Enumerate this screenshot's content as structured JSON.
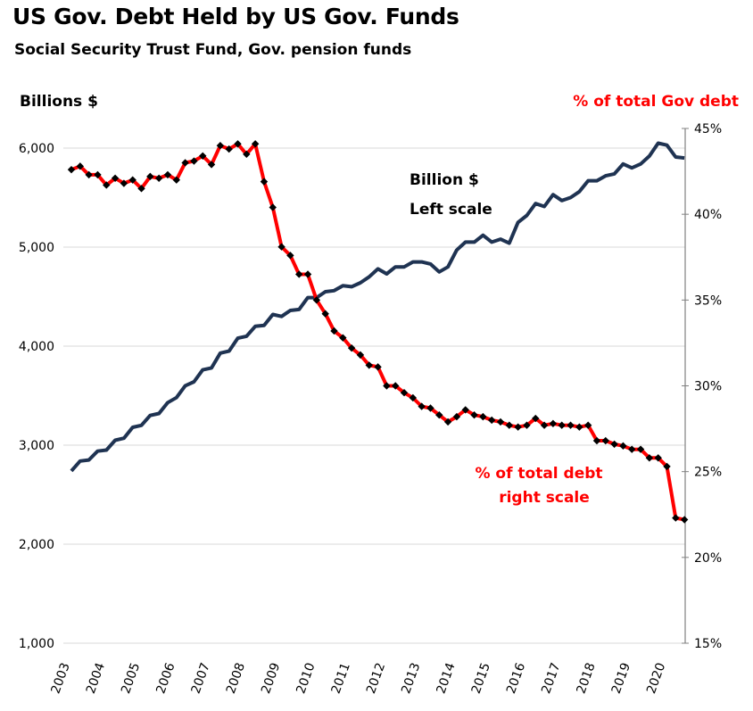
{
  "chart_data": {
    "type": "line",
    "title": "US Gov. Debt Held by US Gov.  Funds",
    "subtitle": "Social Security Trust Fund, Gov. pension funds",
    "ylabel_left": "Billions  $",
    "ylabel_right": "% of total Gov debt",
    "xlabel": "",
    "x_ticks": [
      "2003",
      "2004",
      "2005",
      "2006",
      "2007",
      "2008",
      "2009",
      "2010",
      "2011",
      "2012",
      "2013",
      "2014",
      "2015",
      "2016",
      "2017",
      "2018",
      "2019",
      "2020"
    ],
    "ylim_left": [
      1000,
      6000
    ],
    "yticks_left": [
      "1,000",
      "2,000",
      "3,000",
      "4,000",
      "5,000",
      "6,000"
    ],
    "ylim_right": [
      15,
      45
    ],
    "yticks_right": [
      "15%",
      "20%",
      "25%",
      "30%",
      "35%",
      "40%",
      "45%"
    ],
    "annotations": {
      "billion_line1": "Billion $",
      "billion_line2": "Left scale",
      "pct_line1": "% of total debt",
      "pct_line2": "right scale"
    },
    "colors": {
      "billions": "#1f3352",
      "percent": "#ff0000",
      "markers": "#000000"
    },
    "series": [
      {
        "name": "Billion $ (left scale)",
        "axis": "left",
        "x": [
          2003.0,
          2003.25,
          2003.5,
          2003.75,
          2004.0,
          2004.25,
          2004.5,
          2004.75,
          2005.0,
          2005.25,
          2005.5,
          2005.75,
          2006.0,
          2006.25,
          2006.5,
          2006.75,
          2007.0,
          2007.25,
          2007.5,
          2007.75,
          2008.0,
          2008.25,
          2008.5,
          2008.75,
          2009.0,
          2009.25,
          2009.5,
          2009.75,
          2010.0,
          2010.25,
          2010.5,
          2010.75,
          2011.0,
          2011.25,
          2011.5,
          2011.75,
          2012.0,
          2012.25,
          2012.5,
          2012.75,
          2013.0,
          2013.25,
          2013.5,
          2013.75,
          2014.0,
          2014.25,
          2014.5,
          2014.75,
          2015.0,
          2015.25,
          2015.5,
          2015.75,
          2016.0,
          2016.25,
          2016.5,
          2016.75,
          2017.0,
          2017.25,
          2017.5,
          2017.75,
          2018.0,
          2018.25,
          2018.5,
          2018.75,
          2019.0,
          2019.25,
          2019.5,
          2019.75,
          2020.0,
          2020.25,
          2020.5
        ],
        "values": [
          2740,
          2840,
          2850,
          2940,
          2950,
          3050,
          3070,
          3180,
          3200,
          3300,
          3320,
          3430,
          3480,
          3600,
          3640,
          3760,
          3780,
          3930,
          3950,
          4080,
          4100,
          4200,
          4210,
          4320,
          4300,
          4360,
          4370,
          4490,
          4490,
          4550,
          4560,
          4610,
          4600,
          4640,
          4700,
          4780,
          4730,
          4800,
          4800,
          4850,
          4850,
          4830,
          4750,
          4800,
          4970,
          5050,
          5050,
          5120,
          5050,
          5080,
          5040,
          5250,
          5320,
          5440,
          5410,
          5530,
          5470,
          5500,
          5560,
          5670,
          5670,
          5720,
          5740,
          5840,
          5800,
          5840,
          5920,
          6050,
          6030,
          5910,
          5900
        ]
      },
      {
        "name": "% of total debt (right scale)",
        "axis": "right",
        "x": [
          2003.0,
          2003.25,
          2003.5,
          2003.75,
          2004.0,
          2004.25,
          2004.5,
          2004.75,
          2005.0,
          2005.25,
          2005.5,
          2005.75,
          2006.0,
          2006.25,
          2006.5,
          2006.75,
          2007.0,
          2007.25,
          2007.5,
          2007.75,
          2008.0,
          2008.25,
          2008.5,
          2008.75,
          2009.0,
          2009.25,
          2009.5,
          2009.75,
          2010.0,
          2010.25,
          2010.5,
          2010.75,
          2011.0,
          2011.25,
          2011.5,
          2011.75,
          2012.0,
          2012.25,
          2012.5,
          2012.75,
          2013.0,
          2013.25,
          2013.5,
          2013.75,
          2014.0,
          2014.25,
          2014.5,
          2014.75,
          2015.0,
          2015.25,
          2015.5,
          2015.75,
          2016.0,
          2016.25,
          2016.5,
          2016.75,
          2017.0,
          2017.25,
          2017.5,
          2017.75,
          2018.0,
          2018.25,
          2018.5,
          2018.75,
          2019.0,
          2019.25,
          2019.5,
          2019.75,
          2020.0,
          2020.25,
          2020.5
        ],
        "values": [
          42.6,
          42.8,
          42.3,
          42.3,
          41.7,
          42.1,
          41.8,
          42.0,
          41.5,
          42.2,
          42.1,
          42.3,
          42.0,
          43.0,
          43.1,
          43.4,
          42.9,
          44.0,
          43.8,
          44.1,
          43.5,
          44.1,
          41.9,
          40.4,
          38.1,
          37.6,
          36.5,
          36.5,
          35.0,
          34.2,
          33.2,
          32.8,
          32.2,
          31.8,
          31.2,
          31.1,
          30.0,
          30.0,
          29.6,
          29.3,
          28.8,
          28.7,
          28.3,
          27.9,
          28.2,
          28.6,
          28.3,
          28.2,
          28.0,
          27.9,
          27.7,
          27.6,
          27.7,
          28.1,
          27.7,
          27.8,
          27.7,
          27.7,
          27.6,
          27.7,
          26.8,
          26.8,
          26.6,
          26.5,
          26.3,
          26.3,
          25.8,
          25.8,
          25.3,
          22.3,
          22.2
        ]
      }
    ]
  }
}
